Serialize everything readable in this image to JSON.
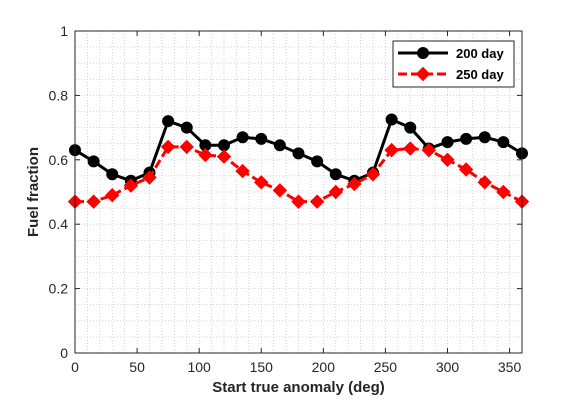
{
  "chart_data": {
    "type": "line",
    "xlabel": "Start true anomaly (deg)",
    "ylabel": "Fuel fraction",
    "xlim": [
      0,
      360
    ],
    "ylim": [
      0,
      1
    ],
    "xticks": [
      0,
      50,
      100,
      150,
      200,
      250,
      300,
      350
    ],
    "yticks": [
      0,
      0.2,
      0.4,
      0.6,
      0.8,
      1
    ],
    "ytick_labels": [
      "0",
      "0.2",
      "0.4",
      "0.6",
      "0.8",
      "1"
    ],
    "grid": "minor dotted",
    "legend_position": "top-right",
    "x": [
      0,
      15,
      30,
      45,
      60,
      75,
      90,
      105,
      120,
      135,
      150,
      165,
      180,
      195,
      210,
      225,
      240,
      255,
      270,
      285,
      300,
      315,
      330,
      345,
      360
    ],
    "series": [
      {
        "name": "200 day",
        "color": "#000000",
        "marker": "circle",
        "values": [
          0.63,
          0.595,
          0.555,
          0.535,
          0.56,
          0.72,
          0.7,
          0.645,
          0.645,
          0.67,
          0.665,
          0.645,
          0.62,
          0.595,
          0.555,
          0.535,
          0.56,
          0.725,
          0.7,
          0.635,
          0.655,
          0.665,
          0.67,
          0.655,
          0.62
        ]
      },
      {
        "name": "250 day",
        "color": "#ff0000",
        "marker": "diamond",
        "values": [
          0.47,
          0.47,
          0.49,
          0.52,
          0.545,
          0.64,
          0.64,
          0.615,
          0.61,
          0.565,
          0.53,
          0.505,
          0.47,
          0.47,
          0.5,
          0.525,
          0.555,
          0.63,
          0.635,
          0.63,
          0.6,
          0.57,
          0.53,
          0.5,
          0.47
        ]
      }
    ]
  }
}
